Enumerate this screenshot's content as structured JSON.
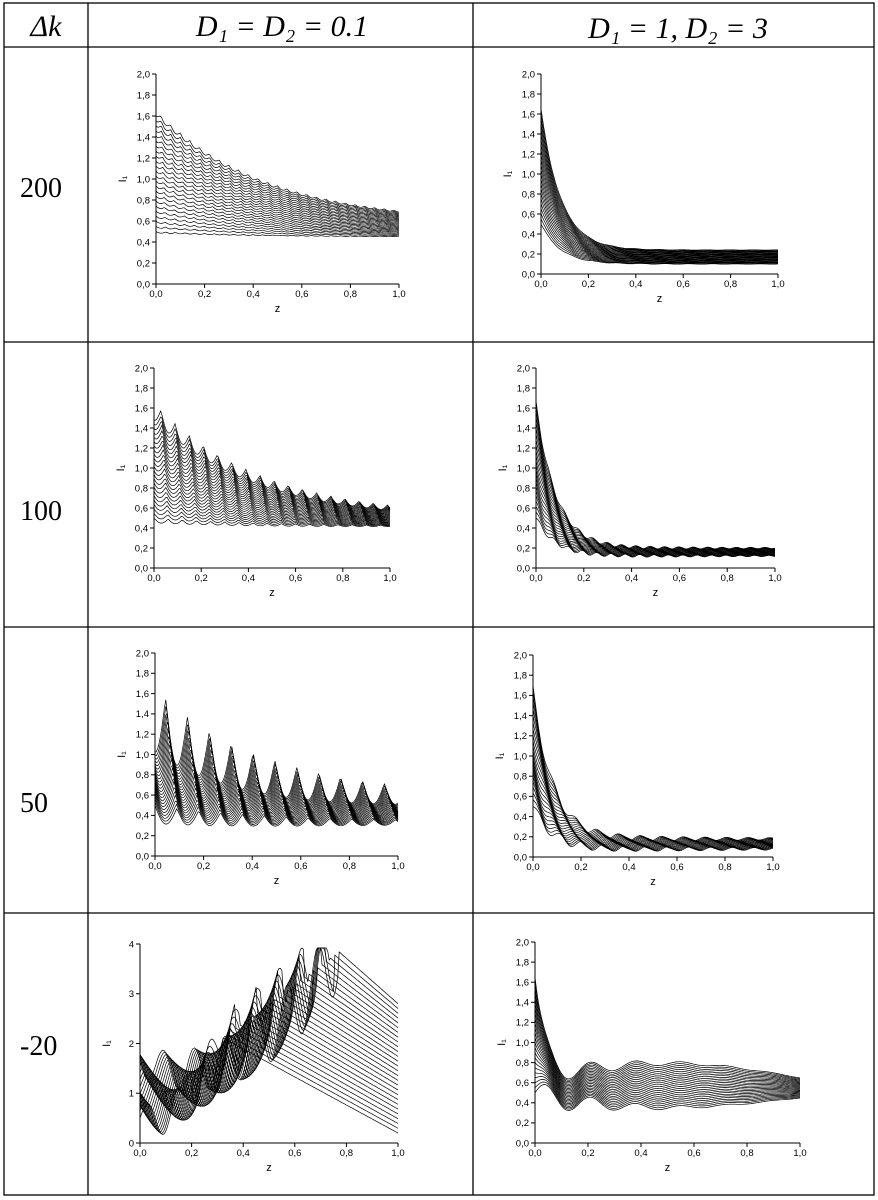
{
  "table": {
    "header": {
      "col0": "Δk",
      "col1": "D₁ = D₂ = 0.1",
      "col2": "D₁ = 1, D₂ = 3"
    },
    "rows": [
      {
        "label": "200"
      },
      {
        "label": "100"
      },
      {
        "label": "50"
      },
      {
        "label": "-20"
      }
    ]
  },
  "chart_data": [
    {
      "type": "line",
      "row_label": "200",
      "column": "D₁ = D₂ = 0.1",
      "xlabel": "z",
      "ylabel": "I₁",
      "xlim": [
        0,
        1
      ],
      "ylim": [
        0,
        2
      ],
      "xticks": [
        "0,0",
        "0,2",
        "0,4",
        "0,6",
        "0,8",
        "1,0"
      ],
      "yticks": [
        "0,0",
        "0,2",
        "0,4",
        "0,6",
        "0,8",
        "1,0",
        "1,2",
        "1,4",
        "1,6",
        "1,8",
        "2,0"
      ],
      "family": {
        "count": 24,
        "start_min": 0.5,
        "start_max": 1.65,
        "end_min": 0.45,
        "end_max": 0.58,
        "kind": "decay",
        "ripple_period": 0.04,
        "ripple_amp": 0.035
      }
    },
    {
      "type": "line",
      "row_label": "200",
      "column": "D₁ = 1, D₂ = 3",
      "xlabel": "z",
      "ylabel": "I₁",
      "xlim": [
        0,
        1
      ],
      "ylim": [
        0,
        2
      ],
      "xticks": [
        "0,0",
        "0,2",
        "0,4",
        "0,6",
        "0,8",
        "1,0"
      ],
      "yticks": [
        "0,0",
        "0,2",
        "0,4",
        "0,6",
        "0,8",
        "1,0",
        "1,2",
        "1,4",
        "1,6",
        "1,8",
        "2,0"
      ],
      "family": {
        "count": 24,
        "start_min": 0.5,
        "start_max": 1.65,
        "end_min": 0.1,
        "end_max": 0.24,
        "kind": "fastdecay",
        "ripple_period": 0.1,
        "ripple_amp": 0.005
      }
    },
    {
      "type": "line",
      "row_label": "100",
      "column": "D₁ = D₂ = 0.1",
      "xlabel": "z",
      "ylabel": "I₁",
      "xlim": [
        0,
        1
      ],
      "ylim": [
        0,
        2
      ],
      "xticks": [
        "0,0",
        "0,2",
        "0,4",
        "0,6",
        "0,8",
        "1,0"
      ],
      "yticks": [
        "0,0",
        "0,2",
        "0,4",
        "0,6",
        "0,8",
        "1,0",
        "1,2",
        "1,4",
        "1,6",
        "1,8",
        "2,0"
      ],
      "family": {
        "count": 24,
        "start_min": 0.5,
        "start_max": 1.65,
        "end_min": 0.42,
        "end_max": 0.5,
        "kind": "decay",
        "ripple_period": 0.06,
        "ripple_amp": 0.12
      }
    },
    {
      "type": "line",
      "row_label": "100",
      "column": "D₁ = 1, D₂ = 3",
      "xlabel": "z",
      "ylabel": "I₁",
      "xlim": [
        0,
        1
      ],
      "ylim": [
        0,
        2
      ],
      "xticks": [
        "0,0",
        "0,2",
        "0,4",
        "0,6",
        "0,8",
        "1,0"
      ],
      "yticks": [
        "0,0",
        "0,2",
        "0,4",
        "0,6",
        "0,8",
        "1,0",
        "1,2",
        "1,4",
        "1,6",
        "1,8",
        "2,0"
      ],
      "family": {
        "count": 24,
        "start_min": 0.5,
        "start_max": 1.65,
        "end_min": 0.12,
        "end_max": 0.2,
        "kind": "fastdecay",
        "ripple_period": 0.06,
        "ripple_amp": 0.025
      }
    },
    {
      "type": "line",
      "row_label": "50",
      "column": "D₁ = D₂ = 0.1",
      "xlabel": "z",
      "ylabel": "I₁",
      "xlim": [
        0,
        1
      ],
      "ylim": [
        0,
        2
      ],
      "xticks": [
        "0,0",
        "0,2",
        "0,4",
        "0,6",
        "0,8",
        "1,0"
      ],
      "yticks": [
        "0,0",
        "0,2",
        "0,4",
        "0,6",
        "0,8",
        "1,0",
        "1,2",
        "1,4",
        "1,6",
        "1,8",
        "2,0"
      ],
      "family": {
        "count": 24,
        "start_min": 0.5,
        "start_max": 1.65,
        "end_min": 0.34,
        "end_max": 0.58,
        "kind": "decay",
        "ripple_period": 0.09,
        "ripple_amp": 0.45
      }
    },
    {
      "type": "line",
      "row_label": "50",
      "column": "D₁ = 1, D₂ = 3",
      "xlabel": "z",
      "ylabel": "I₁",
      "xlim": [
        0,
        1
      ],
      "ylim": [
        0,
        2
      ],
      "xticks": [
        "0,0",
        "0,2",
        "0,4",
        "0,6",
        "0,8",
        "1,0"
      ],
      "yticks": [
        "0,0",
        "0,2",
        "0,4",
        "0,6",
        "0,8",
        "1,0",
        "1,2",
        "1,4",
        "1,6",
        "1,8",
        "2,0"
      ],
      "family": {
        "count": 24,
        "start_min": 0.5,
        "start_max": 1.65,
        "end_min": 0.08,
        "end_max": 0.18,
        "kind": "fastdecay",
        "ripple_period": 0.09,
        "ripple_amp": 0.05
      }
    },
    {
      "type": "line",
      "row_label": "-20",
      "column": "D₁ = D₂ = 0.1",
      "xlabel": "z",
      "ylabel": "I₁",
      "xlim": [
        0,
        1
      ],
      "ylim": [
        0,
        4
      ],
      "xticks": [
        "0,0",
        "0,2",
        "0,4",
        "0,6",
        "0,8",
        "1,0"
      ],
      "yticks": [
        "0",
        "1",
        "2",
        "3",
        "4"
      ],
      "family": {
        "count": 28,
        "start_min": 0.5,
        "start_max": 1.65,
        "end_min": 0.2,
        "end_max": 2.8,
        "kind": "growth",
        "ripple_period": 0.12,
        "ripple_amp": 0.6,
        "peak": 3.85
      }
    },
    {
      "type": "line",
      "row_label": "-20",
      "column": "D₁ = 1, D₂ = 3",
      "xlabel": "z",
      "ylabel": "I₁",
      "xlim": [
        0,
        1
      ],
      "ylim": [
        0,
        2
      ],
      "xticks": [
        "0,0",
        "0,2",
        "0,4",
        "0,6",
        "0,8",
        "1,0"
      ],
      "yticks": [
        "0,0",
        "0,2",
        "0,4",
        "0,6",
        "0,8",
        "1,0",
        "1,2",
        "1,4",
        "1,6",
        "1,8",
        "2,0"
      ],
      "family": {
        "count": 24,
        "start_min": 0.5,
        "start_max": 1.65,
        "end_min": 0.45,
        "end_max": 0.65,
        "kind": "band",
        "ripple_period": 0.17,
        "ripple_amp": 0.15,
        "band_max": 0.8
      }
    }
  ]
}
